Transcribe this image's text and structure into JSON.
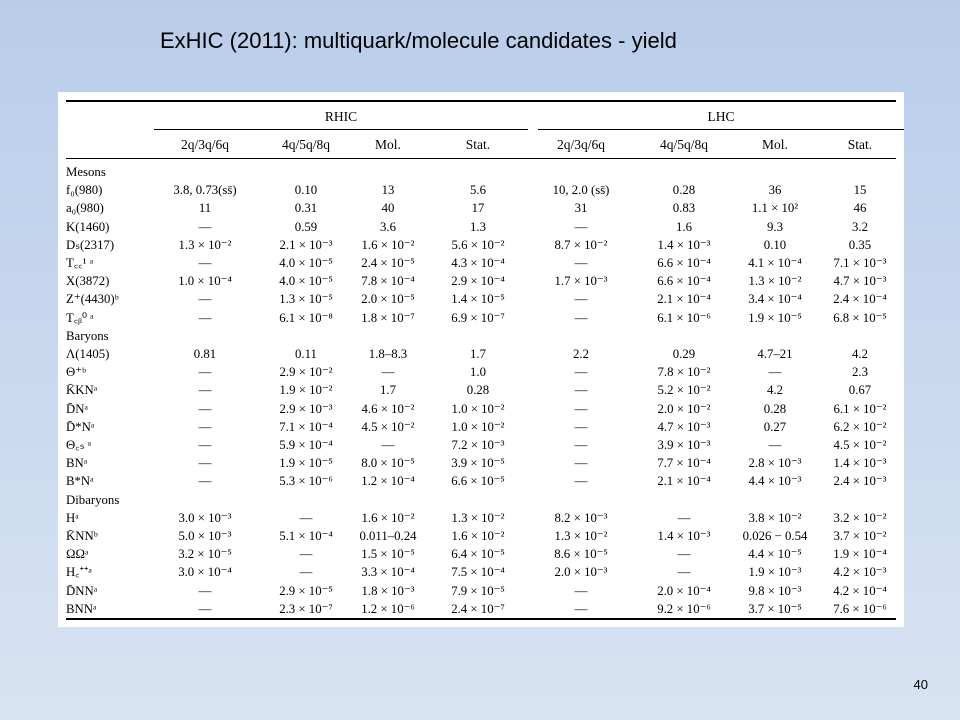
{
  "slide": {
    "title": "ExHIC (2011): multiquark/molecule candidates - yield",
    "page_number": "40"
  },
  "table": {
    "groups": [
      "RHIC",
      "LHC"
    ],
    "columns": [
      "2q/3q/6q",
      "4q/5q/8q",
      "Mol.",
      "Stat.",
      "2q/3q/6q",
      "4q/5q/8q",
      "Mol.",
      "Stat."
    ],
    "rows": [
      {
        "type": "section",
        "name": "Mesons"
      },
      {
        "type": "data",
        "name": "f₀(980)",
        "values": [
          "3.8, 0.73(ss̄)",
          "0.10",
          "13",
          "5.6",
          "10, 2.0 (ss̄)",
          "0.28",
          "36",
          "15"
        ]
      },
      {
        "type": "data",
        "name": "a₀(980)",
        "values": [
          "11",
          "0.31",
          "40",
          "17",
          "31",
          "0.83",
          "1.1 × 10²",
          "46"
        ]
      },
      {
        "type": "data",
        "name": "K(1460)",
        "values": [
          "—",
          "0.59",
          "3.6",
          "1.3",
          "—",
          "1.6",
          "9.3",
          "3.2"
        ]
      },
      {
        "type": "data",
        "name": "Dₛ(2317)",
        "values": [
          "1.3 × 10⁻²",
          "2.1 × 10⁻³",
          "1.6 × 10⁻²",
          "5.6 × 10⁻²",
          "8.7 × 10⁻²",
          "1.4 × 10⁻³",
          "0.10",
          "0.35"
        ]
      },
      {
        "type": "data",
        "name": "T꜀꜀¹ ᵃ",
        "values": [
          "—",
          "4.0 × 10⁻⁵",
          "2.4 × 10⁻⁵",
          "4.3 × 10⁻⁴",
          "—",
          "6.6 × 10⁻⁴",
          "4.1 × 10⁻⁴",
          "7.1 × 10⁻³"
        ]
      },
      {
        "type": "data",
        "name": "X(3872)",
        "values": [
          "1.0 × 10⁻⁴",
          "4.0 × 10⁻⁵",
          "7.8 × 10⁻⁴",
          "2.9 × 10⁻⁴",
          "1.7 × 10⁻³",
          "6.6 × 10⁻⁴",
          "1.3 × 10⁻²",
          "4.7 × 10⁻³"
        ]
      },
      {
        "type": "data",
        "name": "Z⁺(4430)ᵇ",
        "values": [
          "—",
          "1.3 × 10⁻⁵",
          "2.0 × 10⁻⁵",
          "1.4 × 10⁻⁵",
          "—",
          "2.1 × 10⁻⁴",
          "3.4 × 10⁻⁴",
          "2.4 × 10⁻⁴"
        ]
      },
      {
        "type": "data",
        "name": "T꜀ᵦ⁰ ᵃ",
        "values": [
          "—",
          "6.1 × 10⁻⁸",
          "1.8 × 10⁻⁷",
          "6.9 × 10⁻⁷",
          "—",
          "6.1 × 10⁻⁶",
          "1.9 × 10⁻⁵",
          "6.8 × 10⁻⁵"
        ]
      },
      {
        "type": "section",
        "name": "Baryons"
      },
      {
        "type": "data",
        "name": "Λ(1405)",
        "values": [
          "0.81",
          "0.11",
          "1.8–8.3",
          "1.7",
          "2.2",
          "0.29",
          "4.7–21",
          "4.2"
        ]
      },
      {
        "type": "data",
        "name": "Θ⁺ᵇ",
        "values": [
          "—",
          "2.9 × 10⁻²",
          "—",
          "1.0",
          "—",
          "7.8 × 10⁻²",
          "—",
          "2.3"
        ]
      },
      {
        "type": "data",
        "name": "K̄KNᵃ",
        "values": [
          "—",
          "1.9 × 10⁻²",
          "1.7",
          "0.28",
          "—",
          "5.2 × 10⁻²",
          "4.2",
          "0.67"
        ]
      },
      {
        "type": "data",
        "name": "D̄Nᵃ",
        "values": [
          "—",
          "2.9 × 10⁻³",
          "4.6 × 10⁻²",
          "1.0 × 10⁻²",
          "—",
          "2.0 × 10⁻²",
          "0.28",
          "6.1 × 10⁻²"
        ]
      },
      {
        "type": "data",
        "name": "D̄*Nᵃ",
        "values": [
          "—",
          "7.1 × 10⁻⁴",
          "4.5 × 10⁻²",
          "1.0 × 10⁻²",
          "—",
          "4.7 × 10⁻³",
          "0.27",
          "6.2 × 10⁻²"
        ]
      },
      {
        "type": "data",
        "name": "Θ꜀ₛ ᵃ",
        "values": [
          "—",
          "5.9 × 10⁻⁴",
          "—",
          "7.2 × 10⁻³",
          "—",
          "3.9 × 10⁻³",
          "—",
          "4.5 × 10⁻²"
        ]
      },
      {
        "type": "data",
        "name": "BNᵃ",
        "values": [
          "—",
          "1.9 × 10⁻⁵",
          "8.0 × 10⁻⁵",
          "3.9 × 10⁻⁵",
          "—",
          "7.7 × 10⁻⁴",
          "2.8 × 10⁻³",
          "1.4 × 10⁻³"
        ]
      },
      {
        "type": "data",
        "name": "B*Nᵃ",
        "values": [
          "—",
          "5.3 × 10⁻⁶",
          "1.2 × 10⁻⁴",
          "6.6 × 10⁻⁵",
          "—",
          "2.1 × 10⁻⁴",
          "4.4 × 10⁻³",
          "2.4 × 10⁻³"
        ]
      },
      {
        "type": "section",
        "name": "Dibaryons"
      },
      {
        "type": "data",
        "name": "Hᵃ",
        "values": [
          "3.0 × 10⁻³",
          "—",
          "1.6 × 10⁻²",
          "1.3 × 10⁻²",
          "8.2 × 10⁻³",
          "—",
          "3.8 × 10⁻²",
          "3.2 × 10⁻²"
        ]
      },
      {
        "type": "data",
        "name": "K̄NNᵇ",
        "values": [
          "5.0 × 10⁻³",
          "5.1 × 10⁻⁴",
          "0.011–0.24",
          "1.6 × 10⁻²",
          "1.3 × 10⁻²",
          "1.4 × 10⁻³",
          "0.026 − 0.54",
          "3.7 × 10⁻²"
        ]
      },
      {
        "type": "data",
        "name": "ΩΩᵃ",
        "values": [
          "3.2 × 10⁻⁵",
          "—",
          "1.5 × 10⁻⁵",
          "6.4 × 10⁻⁵",
          "8.6 × 10⁻⁵",
          "—",
          "4.4 × 10⁻⁵",
          "1.9 × 10⁻⁴"
        ]
      },
      {
        "type": "data",
        "name": "H꜀⁺⁺ᵃ",
        "values": [
          "3.0 × 10⁻⁴",
          "—",
          "3.3 × 10⁻⁴",
          "7.5 × 10⁻⁴",
          "2.0 × 10⁻³",
          "—",
          "1.9 × 10⁻³",
          "4.2 × 10⁻³"
        ]
      },
      {
        "type": "data",
        "name": "D̄NNᵃ",
        "values": [
          "—",
          "2.9 × 10⁻⁵",
          "1.8 × 10⁻³",
          "7.9 × 10⁻⁵",
          "—",
          "2.0 × 10⁻⁴",
          "9.8 × 10⁻³",
          "4.2 × 10⁻⁴"
        ]
      },
      {
        "type": "data",
        "name": "BNNᵃ",
        "values": [
          "—",
          "2.3 × 10⁻⁷",
          "1.2 × 10⁻⁶",
          "2.4 × 10⁻⁷",
          "—",
          "9.2 × 10⁻⁶",
          "3.7 × 10⁻⁵",
          "7.6 × 10⁻⁶"
        ]
      }
    ]
  }
}
